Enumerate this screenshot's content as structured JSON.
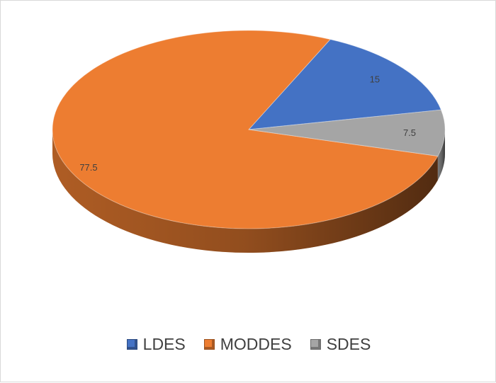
{
  "chart_data": {
    "type": "pie",
    "style": "3d",
    "title": "",
    "slices": [
      {
        "label": "LDES",
        "value": 15,
        "data_label": "15",
        "color": "#4472C4"
      },
      {
        "label": "MODDES",
        "value": 77.5,
        "data_label": "77.5",
        "color": "#ED7D31"
      },
      {
        "label": "SDES",
        "value": 7.5,
        "data_label": "7.5",
        "color": "#A5A5A5"
      }
    ],
    "legend_position": "bottom"
  }
}
